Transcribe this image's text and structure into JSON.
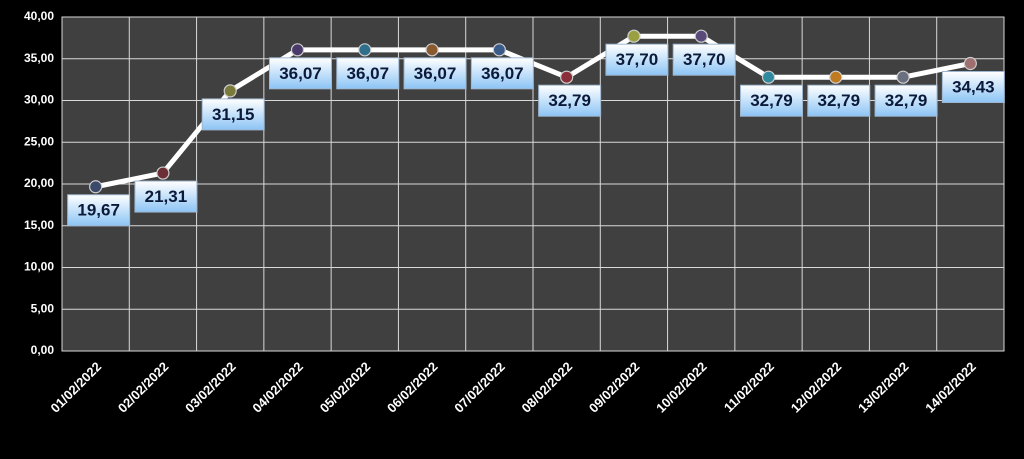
{
  "chart_data": {
    "type": "line",
    "categories": [
      "01/02/2022",
      "02/02/2022",
      "03/02/2022",
      "04/02/2022",
      "05/02/2022",
      "06/02/2022",
      "07/02/2022",
      "08/02/2022",
      "09/02/2022",
      "10/02/2022",
      "11/02/2022",
      "12/02/2022",
      "13/02/2022",
      "14/02/2022"
    ],
    "values": [
      19.67,
      21.31,
      31.15,
      36.07,
      36.07,
      36.07,
      36.07,
      32.79,
      37.7,
      37.7,
      32.79,
      32.79,
      32.79,
      34.43
    ],
    "value_labels": [
      "19,67",
      "21,31",
      "31,15",
      "36,07",
      "36,07",
      "36,07",
      "36,07",
      "32,79",
      "37,70",
      "37,70",
      "32,79",
      "32,79",
      "32,79",
      "34,43"
    ],
    "color": "#ffffff",
    "point_colors": [
      "#3b4a6b",
      "#6b2f35",
      "#7a7a3a",
      "#4a3a6b",
      "#2f6f8a",
      "#8a5a2f",
      "#3a5a8a",
      "#8a2f3a",
      "#9aa040",
      "#5a4a7a",
      "#2f8aa0",
      "#c07a20",
      "#6a7080",
      "#a07070"
    ],
    "ylim": [
      0,
      40
    ],
    "yticks": [
      {
        "value": 0,
        "label": "0,00"
      },
      {
        "value": 5,
        "label": "5,00"
      },
      {
        "value": 10,
        "label": "10,00"
      },
      {
        "value": 15,
        "label": "15,00"
      },
      {
        "value": 20,
        "label": "20,00"
      },
      {
        "value": 25,
        "label": "25,00"
      },
      {
        "value": 30,
        "label": "30,00"
      },
      {
        "value": 35,
        "label": "35,00"
      },
      {
        "value": 40,
        "label": "40,00"
      }
    ],
    "grid": true
  }
}
